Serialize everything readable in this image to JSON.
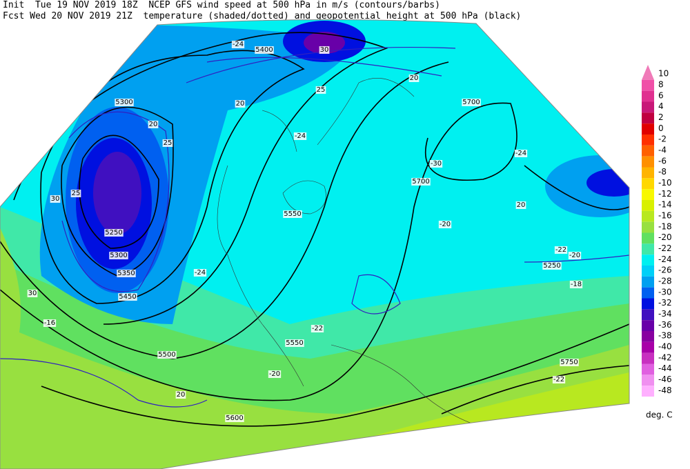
{
  "header": {
    "line1": "Init  Tue 19 NOV 2019 18Z  NCEP GFS wind speed at 500 hPa in m/s (contours/barbs)",
    "line2": "Fcst Wed 20 NOV 2019 21Z  temperature (shaded/dotted) and geopotential height at 500 hPa (black)"
  },
  "colorbar": {
    "labels": [
      10,
      8,
      6,
      4,
      2,
      0,
      -2,
      -4,
      -6,
      -8,
      -10,
      -12,
      -14,
      -16,
      -18,
      -20,
      -22,
      -24,
      -26,
      -28,
      -30,
      -32,
      -34,
      -36,
      -38,
      -40,
      -42,
      -44,
      -46,
      -48
    ],
    "colors": [
      "#f07ab8",
      "#f050a8",
      "#e03090",
      "#c81878",
      "#c00040",
      "#e00000",
      "#ff3000",
      "#ff6000",
      "#ff9000",
      "#ffb400",
      "#ffd800",
      "#f8f800",
      "#d8f000",
      "#b8e820",
      "#98e040",
      "#60e060",
      "#40e8a8",
      "#00f0f0",
      "#00d0f8",
      "#00a0f0",
      "#0060f0",
      "#0010e0",
      "#4010c0",
      "#6800a8",
      "#8800a0",
      "#a800a8",
      "#c830c0",
      "#e060e0",
      "#f090f0",
      "#ffb0ff"
    ],
    "unit": "deg. C"
  },
  "map_labels": [
    "5400",
    "5700",
    "5700",
    "5300",
    "5250",
    "5300",
    "5350",
    "5450",
    "5500",
    "5550",
    "5550",
    "5600",
    "5750",
    "5250",
    "30",
    "25",
    "20",
    "20",
    "25",
    "20",
    "30",
    "20",
    "25",
    "20",
    "30",
    "-24",
    "-24",
    "-24",
    "-22",
    "-20",
    "-22",
    "-18",
    "-16",
    "-20",
    "-22",
    "-24",
    "-30",
    "-20"
  ]
}
